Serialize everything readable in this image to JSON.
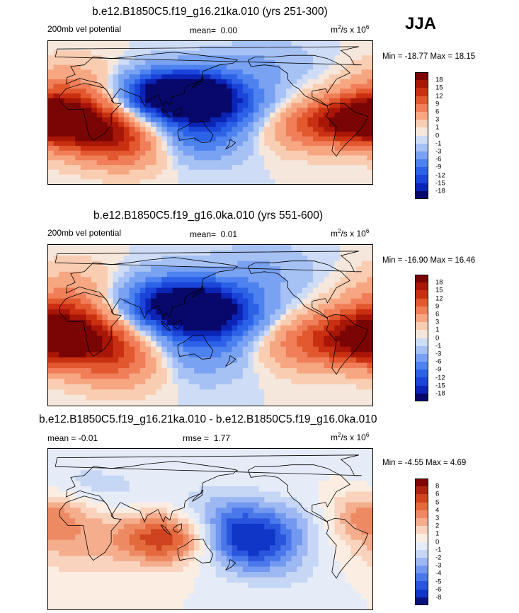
{
  "season": "JJA",
  "colors": {
    "main": [
      "#08086b",
      "#0b24b5",
      "#1b44d9",
      "#2c62e6",
      "#4d82ef",
      "#7aa2f2",
      "#a6c1f4",
      "#cfdcf6",
      "#f6e7dc",
      "#f9cdb2",
      "#f7a682",
      "#f07f59",
      "#e2582f",
      "#c93012",
      "#a81608",
      "#7a0505"
    ],
    "diff": [
      "#0a127d",
      "#1036c8",
      "#2a55dd",
      "#4a78ea",
      "#7298ef",
      "#9db8f2",
      "#c6d6f5",
      "#e6ecf7",
      "#fbede2",
      "#f9d3bd",
      "#f4ad8d",
      "#ee8a63",
      "#e46a3e",
      "#cf4320",
      "#ad2312",
      "#800606"
    ],
    "land_outline": "#000000"
  },
  "chart_data": [
    {
      "type": "heatmap",
      "title": "b.e12.B1850C5.f19_g16.21ka.010 (yrs 251-300)",
      "variable": "200mb vel potential",
      "mean_label": "mean=",
      "mean": "0.00",
      "units": "m",
      "units_exp": "2",
      "units_tail": "/s x 10",
      "units_exp2": "6",
      "min_label": "Min =",
      "min": "-18.77",
      "max_label": "Max =",
      "max": "18.15",
      "levels": [
        "18",
        "15",
        "12",
        "9",
        "6",
        "3",
        "1",
        "0",
        "-1",
        "-3",
        "-6",
        "-9",
        "-12",
        "-15",
        "-18"
      ],
      "centers": [
        {
          "lon": 125,
          "lat": 25,
          "v": -18
        },
        {
          "lon": 95,
          "lat": 20,
          "v": -12
        },
        {
          "lon": 160,
          "lat": 10,
          "v": -10
        },
        {
          "lon": 145,
          "lat": -20,
          "v": -6
        },
        {
          "lon": 130,
          "lat": -40,
          "v": -4
        },
        {
          "lon": -45,
          "lat": -10,
          "v": 18
        },
        {
          "lon": -10,
          "lat": 10,
          "v": 9
        },
        {
          "lon": -110,
          "lat": -20,
          "v": 6
        },
        {
          "lon": 25,
          "lat": -20,
          "v": 14
        },
        {
          "lon": 55,
          "lat": -45,
          "v": 8
        },
        {
          "lon": -150,
          "lat": 60,
          "v": -3
        },
        {
          "lon": 0,
          "lat": 45,
          "v": 3
        }
      ]
    },
    {
      "type": "heatmap",
      "title": "b.e12.B1850C5.f19_g16.0ka.010 (yrs 551-600)",
      "variable": "200mb vel potential",
      "mean_label": "mean=",
      "mean": "0.01",
      "units": "m",
      "units_exp": "2",
      "units_tail": "/s x 10",
      "units_exp2": "6",
      "min_label": "Min =",
      "min": "-16.90",
      "max_label": "Max =",
      "max": "16.46",
      "levels": [
        "18",
        "15",
        "12",
        "9",
        "6",
        "3",
        "1",
        "0",
        "-1",
        "-3",
        "-6",
        "-9",
        "-12",
        "-15",
        "-18"
      ],
      "centers": [
        {
          "lon": 130,
          "lat": 20,
          "v": -16
        },
        {
          "lon": 95,
          "lat": 25,
          "v": -10
        },
        {
          "lon": 165,
          "lat": 15,
          "v": -9
        },
        {
          "lon": 150,
          "lat": -15,
          "v": -5
        },
        {
          "lon": 130,
          "lat": -40,
          "v": -3
        },
        {
          "lon": -40,
          "lat": -15,
          "v": 16
        },
        {
          "lon": -10,
          "lat": 10,
          "v": 8
        },
        {
          "lon": -110,
          "lat": -20,
          "v": 7
        },
        {
          "lon": 20,
          "lat": -20,
          "v": 12
        },
        {
          "lon": 55,
          "lat": -45,
          "v": 6
        },
        {
          "lon": -150,
          "lat": 60,
          "v": -3
        },
        {
          "lon": 0,
          "lat": 45,
          "v": 3
        }
      ]
    },
    {
      "type": "heatmap",
      "title": "b.e12.B1850C5.f19_g16.21ka.010 - b.e12.B1850C5.f19_g16.0ka.010",
      "variable": "",
      "mean_label": "mean =",
      "mean": "-0.01",
      "rmse_label": "rmse =",
      "rmse": "1.77",
      "units": "m",
      "units_exp": "2",
      "units_tail": "/s x 10",
      "units_exp2": "6",
      "min_label": "Min =",
      "min": "-4.55",
      "max_label": "Max =",
      "max": "4.69",
      "levels": [
        "8",
        "6",
        "5",
        "4",
        "3",
        "2",
        "1",
        "0",
        "-1",
        "-2",
        "-3",
        "-4",
        "-5",
        "-6",
        "-8"
      ],
      "centers": [
        {
          "lon": -175,
          "lat": -5,
          "v": -4.5
        },
        {
          "lon": -160,
          "lat": -25,
          "v": -3.5
        },
        {
          "lon": 160,
          "lat": 20,
          "v": -2
        },
        {
          "lon": 110,
          "lat": -10,
          "v": 4
        },
        {
          "lon": 85,
          "lat": -10,
          "v": 2.5
        },
        {
          "lon": -30,
          "lat": 15,
          "v": 4.2
        },
        {
          "lon": -5,
          "lat": -25,
          "v": 1.5
        },
        {
          "lon": 0,
          "lat": 45,
          "v": -1.5
        },
        {
          "lon": 60,
          "lat": 40,
          "v": -0.8
        },
        {
          "lon": -110,
          "lat": 10,
          "v": -1.5
        },
        {
          "lon": -120,
          "lat": -55,
          "v": -0.6
        }
      ]
    }
  ]
}
